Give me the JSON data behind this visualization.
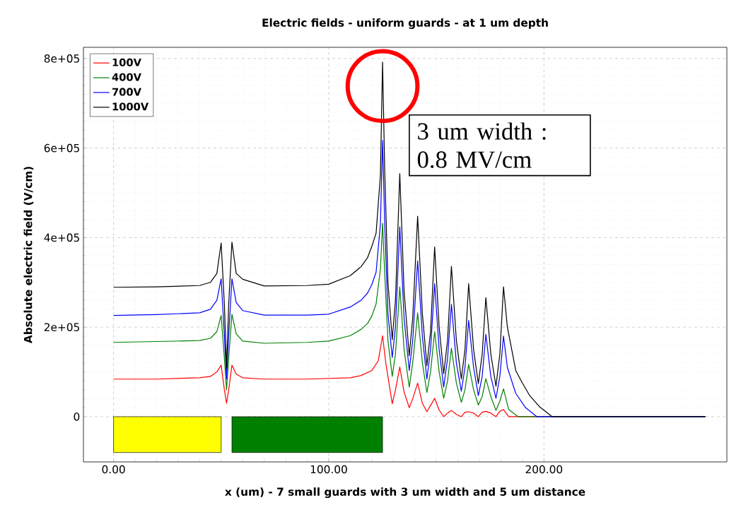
{
  "chart_data": {
    "type": "line",
    "title": "Electric fields - uniform guards - at 1 um depth",
    "xlabel": "x (um) - 7 small guards with 3 um width and 5 um distance",
    "ylabel": "Absolute electric field (V/cm)",
    "xlim": [
      -14,
      285
    ],
    "ylim": [
      -101000,
      825000
    ],
    "xticks": [
      {
        "value": 0,
        "label": "0.00"
      },
      {
        "value": 100,
        "label": "100.00"
      },
      {
        "value": 200,
        "label": "200.00"
      }
    ],
    "yticks": [
      0,
      {
        "value": 200000,
        "label": "2e+05"
      },
      {
        "value": 400000,
        "label": "4e+05"
      },
      {
        "value": 600000,
        "label": "6e+05"
      },
      {
        "value": 800000,
        "label": "8e+05"
      }
    ],
    "grid": true,
    "legend": "top left",
    "marker": "none",
    "line_style": "solid",
    "annotations": [
      {
        "text": "3 um width : 0.8 MV/cm",
        "x": 125,
        "y": 792000
      }
    ],
    "series": [
      {
        "name": "100V",
        "color": "#ff0000",
        "x": [
          0,
          20,
          40,
          45,
          48,
          50,
          51.5,
          52.5,
          53.5,
          55,
          57,
          60,
          70,
          90,
          110,
          115,
          120,
          123,
          125,
          126.5,
          129.5,
          131,
          133,
          135,
          137.4,
          139,
          141.3,
          143.5,
          145.6,
          147.3,
          149.2,
          151.3,
          153.4,
          155.2,
          157,
          159.3,
          161.6,
          163.3,
          165,
          167.3,
          169.5,
          171.3,
          173,
          175.3,
          177.7,
          179.5,
          181.2,
          183.6,
          275
        ],
        "values": [
          84000,
          84000,
          87000,
          90000,
          100000,
          115000,
          60000,
          30000,
          60000,
          115000,
          95000,
          87000,
          84000,
          84000,
          87000,
          92000,
          103000,
          125000,
          181000,
          120000,
          29000,
          60000,
          111000,
          55000,
          20000,
          40000,
          75000,
          30000,
          11000,
          25000,
          41000,
          15000,
          0,
          8000,
          14000,
          5000,
          0,
          10000,
          11000,
          8000,
          0,
          10000,
          12000,
          8000,
          0,
          12000,
          16000,
          0,
          0
        ]
      },
      {
        "name": "400V",
        "color": "#008000",
        "x": [
          0,
          20,
          40,
          45,
          48,
          50,
          51.5,
          52.5,
          53.5,
          55,
          57,
          60,
          70,
          90,
          100,
          110,
          115,
          118,
          120,
          122,
          124,
          125,
          126,
          127.5,
          129.5,
          131,
          133,
          135,
          137.4,
          139,
          141.3,
          143.5,
          145.6,
          147.3,
          149.2,
          151.3,
          153.4,
          155.2,
          157,
          159.3,
          161.6,
          163.3,
          165,
          167.3,
          169.5,
          171.3,
          173,
          175.3,
          177.7,
          179.5,
          181.2,
          183.6,
          188,
          275
        ],
        "values": [
          166000,
          168000,
          170000,
          175000,
          190000,
          226000,
          130000,
          60000,
          130000,
          229000,
          185000,
          169000,
          164000,
          166000,
          169000,
          181000,
          195000,
          208000,
          225000,
          252000,
          330000,
          432000,
          320000,
          170000,
          90000,
          140000,
          290000,
          150000,
          66000,
          120000,
          232000,
          120000,
          54000,
          100000,
          190000,
          100000,
          41000,
          80000,
          153000,
          75000,
          32000,
          60000,
          117000,
          60000,
          26000,
          45000,
          85000,
          45000,
          14000,
          35000,
          62000,
          16000,
          0,
          0
        ]
      },
      {
        "name": "700V",
        "color": "#0000ff",
        "x": [
          0,
          20,
          40,
          45,
          48,
          50,
          51.5,
          52.5,
          53.5,
          55,
          57,
          60,
          70,
          90,
          100,
          110,
          115,
          118,
          120,
          122,
          124,
          125,
          126,
          127.5,
          129.5,
          131,
          133,
          135,
          137.4,
          139,
          141.3,
          143.5,
          145.6,
          147.3,
          149.2,
          151.3,
          153.4,
          155.2,
          157,
          159.3,
          161.6,
          163.3,
          165,
          167.3,
          169.5,
          171.3,
          173,
          175.3,
          177.7,
          179.5,
          181.2,
          183,
          186.9,
          191.3,
          196.7,
          275
        ],
        "values": [
          226000,
          228000,
          232000,
          240000,
          260000,
          308000,
          180000,
          84000,
          180000,
          308000,
          255000,
          237000,
          227000,
          227000,
          229000,
          245000,
          260000,
          276000,
          295000,
          323000,
          430000,
          617000,
          430000,
          230000,
          132000,
          200000,
          424000,
          220000,
          103000,
          170000,
          348000,
          180000,
          84000,
          150000,
          297000,
          150000,
          66000,
          130000,
          251000,
          120000,
          57000,
          110000,
          215000,
          110000,
          47000,
          90000,
          184000,
          90000,
          41000,
          90000,
          180000,
          110000,
          52000,
          21000,
          0,
          0
        ]
      },
      {
        "name": "1000V",
        "color": "#000000",
        "x": [
          0,
          20,
          40,
          45,
          48,
          50,
          51.5,
          52.5,
          53.5,
          55,
          57,
          60,
          70,
          90,
          100,
          110,
          115,
          118,
          120,
          122,
          124,
          125,
          126,
          127.5,
          129.5,
          131,
          133,
          135,
          137.4,
          139,
          141.3,
          143.5,
          145.6,
          147.3,
          149.2,
          151.3,
          153.4,
          155.2,
          157,
          159.3,
          161.6,
          163.3,
          165,
          167.3,
          169.5,
          171.3,
          173,
          175.3,
          177.7,
          179.5,
          181.2,
          183,
          186.9,
          190,
          193.4,
          198,
          203.8,
          275
        ],
        "values": [
          289000,
          290000,
          293000,
          300000,
          320000,
          388000,
          250000,
          108000,
          250000,
          390000,
          320000,
          307000,
          292000,
          293000,
          296000,
          315000,
          335000,
          355000,
          380000,
          410000,
          540000,
          792000,
          550000,
          300000,
          172000,
          260000,
          543000,
          280000,
          136000,
          220000,
          448000,
          230000,
          114000,
          190000,
          379000,
          200000,
          96000,
          170000,
          336000,
          170000,
          84000,
          150000,
          297000,
          150000,
          74000,
          140000,
          266000,
          140000,
          68000,
          140000,
          290000,
          200000,
          103000,
          75000,
          47000,
          22000,
          0,
          0
        ]
      },
      {
        "type": "area",
        "color": "#ffff00",
        "x": [
          0,
          50
        ],
        "values": [
          -80000,
          -80000
        ]
      },
      {
        "type": "area",
        "color": "#008000",
        "x": [
          55,
          125
        ],
        "values": [
          -80000,
          -80000
        ]
      }
    ]
  }
}
